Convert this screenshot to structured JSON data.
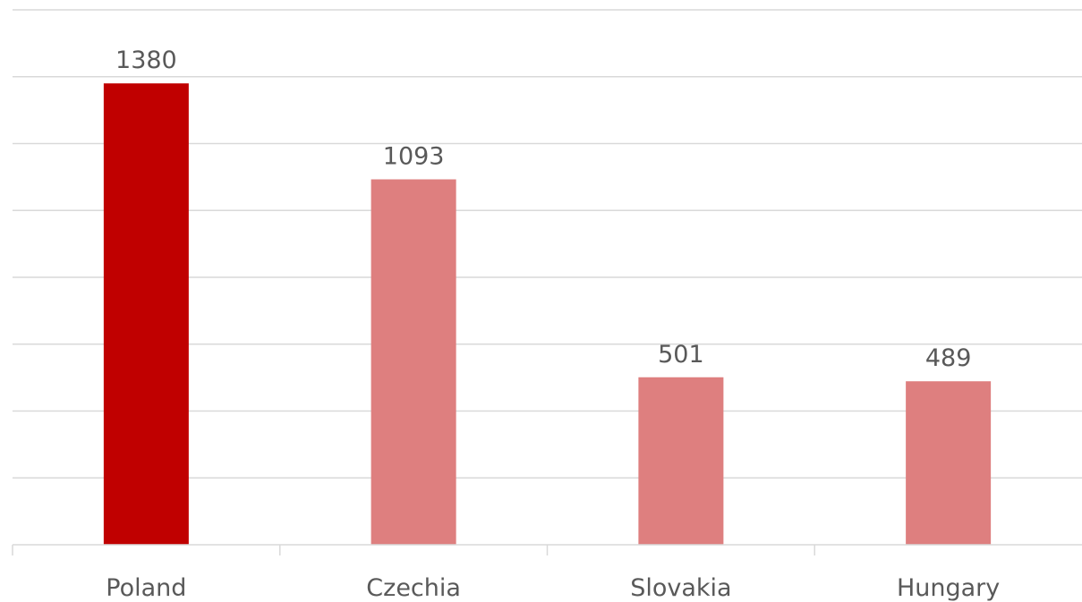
{
  "chart_data": {
    "type": "bar",
    "categories": [
      "Poland",
      "Czechia",
      "Slovakia",
      "Hungary"
    ],
    "values": [
      1380,
      1093,
      501,
      489
    ],
    "data_labels": [
      "1380",
      "1093",
      "501",
      "489"
    ],
    "ylim": [
      0,
      1600
    ],
    "y_gridline_step": 200,
    "grid": true,
    "y_tick_labels_shown": false,
    "colors": {
      "highlight": "#c00000",
      "default": "#de7f7f"
    },
    "highlight_index": 0
  }
}
